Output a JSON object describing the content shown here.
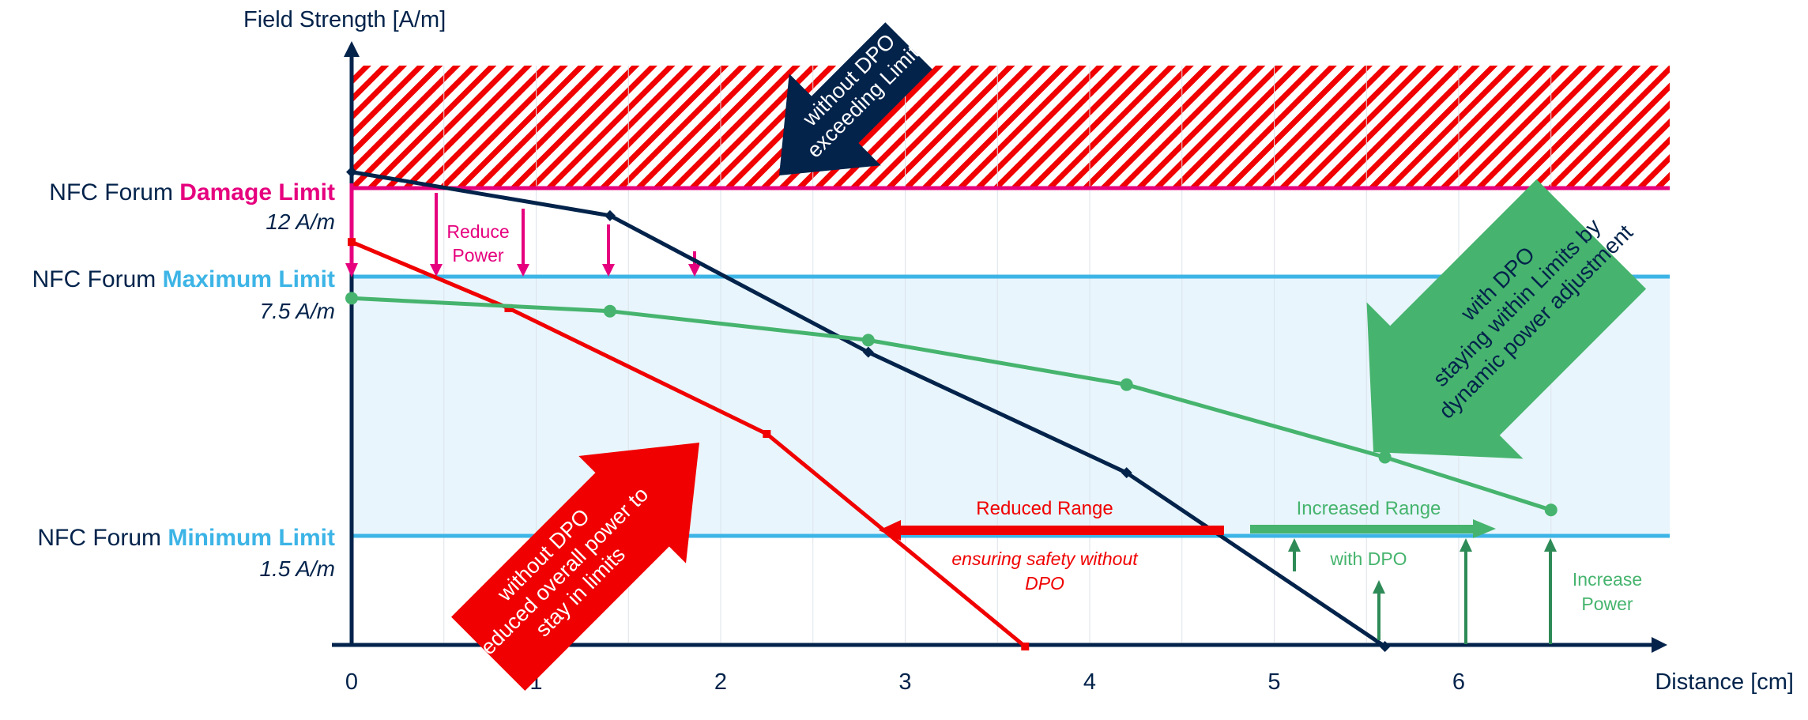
{
  "chart_data": {
    "type": "line",
    "title": "",
    "xlabel": "Distance [cm]",
    "ylabel": "Field Strength [A/m]",
    "xlim": [
      0,
      7.15
    ],
    "x_ticks": [
      "0",
      "1",
      "2",
      "3",
      "4",
      "5",
      "6"
    ],
    "limits": [
      {
        "prefix": "NFC Forum ",
        "name": "Damage Limit",
        "value_label": "12 A/m",
        "color": "#e6007e"
      },
      {
        "prefix": "NFC Forum ",
        "name": "Maximum Limit",
        "value_label": "7.5 A/m",
        "color": "#3cb4e6"
      },
      {
        "prefix": "NFC Forum ",
        "name": "Minimum Limit",
        "value_label": "1.5 A/m",
        "color": "#3cb4e6"
      }
    ],
    "series": [
      {
        "key": "without_dpo",
        "color": "#03234b",
        "x": [
          0,
          1.4,
          2.8,
          4.2,
          5.6
        ],
        "y": [
          12.6,
          10.6,
          5.75,
          2.96,
          0
        ]
      },
      {
        "key": "reduced_power",
        "color": "#f00000",
        "x": [
          0,
          0.85,
          2.25,
          3.65
        ],
        "y": [
          9.26,
          6.77,
          3.86,
          0
        ]
      },
      {
        "key": "with_dpo",
        "color": "#46b46e",
        "x": [
          0,
          1.4,
          2.8,
          4.2,
          5.6,
          6.5
        ],
        "y": [
          7.0,
          6.7,
          6.03,
          5.0,
          3.32,
          2.1
        ]
      }
    ],
    "annotations": {
      "reduce_power": "Reduce\nPower",
      "reduced_range": "Reduced Range",
      "ensuring_safety": "ensuring safety without\nDPO",
      "increased_range": "Increased Range",
      "with_dpo": "with DPO",
      "increase_power": "Increase\nPower",
      "arrow_exceeding": "without DPO\nexceeding Limits",
      "arrow_reduced": "without DPO\nreduced overall power to\nstay in limits",
      "arrow_within": "with DPO\nstaying within Limits by\ndynamic power adjustment"
    },
    "colors": {
      "axis": "#03234b",
      "band": "#e8f5fc",
      "hatch": "#f00000",
      "arrow_exceeding": "#03234b",
      "arrow_reduced": "#f00000",
      "arrow_within": "#46b46e",
      "power_arrow_pink": "#e6007e",
      "range_red": "#f00000",
      "range_green": "#46b46e",
      "increase_green": "#2e8b57"
    }
  }
}
